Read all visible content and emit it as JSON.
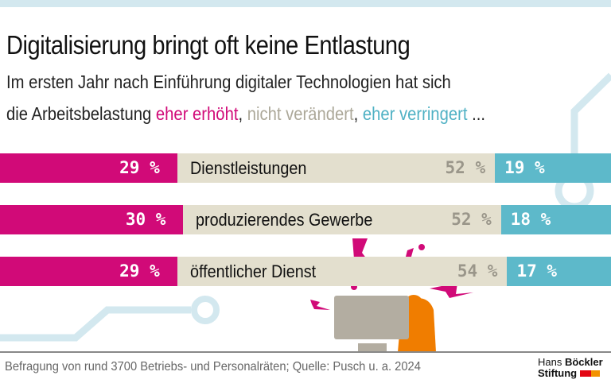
{
  "title": "Digitalisierung bringt oft keine Entlastung",
  "subtitle": {
    "line1": "Im ersten Jahr nach Einführung digitaler Technologien hat sich",
    "line2_prefix": "die Arbeitsbelastung ",
    "legend_increased": "eher erhöht",
    "sep1": ", ",
    "legend_unchanged": "nicht verändert",
    "sep2": ", ",
    "legend_decreased": "eher verringert",
    "suffix": " ..."
  },
  "colors": {
    "increased": "#d10a78",
    "unchanged": "#e3dfce",
    "decreased": "#5db9ca",
    "decor": "#d3e8ef",
    "illustration_orange": "#f07d00",
    "monitor": "#b3ada1"
  },
  "chart_data": {
    "type": "bar",
    "orientation": "horizontal-stacked-100",
    "categories": [
      "Dienstleistungen",
      "produzierendes Gewerbe",
      "öffentlicher Dienst"
    ],
    "series": [
      {
        "name": "eher erhöht",
        "values": [
          29,
          30,
          29
        ],
        "labels": [
          "29 %",
          "30 %",
          "29 %"
        ]
      },
      {
        "name": "nicht verändert",
        "values": [
          52,
          52,
          54
        ],
        "labels": [
          "52 %",
          "52 %",
          "54 %"
        ]
      },
      {
        "name": "eher verringert",
        "values": [
          19,
          18,
          17
        ],
        "labels": [
          "19 %",
          "18 %",
          "17 %"
        ]
      }
    ]
  },
  "footer": {
    "source": "Befragung von rund 3700 Betriebs- und Personalräten; Quelle: Pusch u. a. 2024"
  },
  "logo": {
    "line1a": "Hans ",
    "line1b": "Böckler",
    "line2": "Stiftung"
  }
}
